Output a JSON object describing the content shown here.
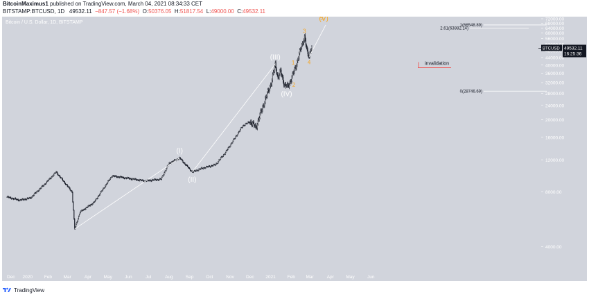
{
  "header": {
    "author": "BitcoinMaximus1",
    "published_text": " published on TradingView.com, March 04, 2021 08:34:33 CET",
    "symbol": "BITSTAMP:BTCUSD, 1D",
    "price": "49532.11",
    "change": "−847.57 (−1.68%)",
    "o_label": "O:",
    "o_val": "50376.05",
    "h_label": "H:",
    "h_val": "51817.54",
    "l_label": "L:",
    "l_val": "49000.00",
    "c_label": "C:",
    "c_val": "49532.11"
  },
  "chart_title": "Bitcoin / U.S. Dollar, 1D, BITSTAMP",
  "price_tag": {
    "symbol": "BTCUSD",
    "price": "49532.11",
    "countdown": "16:25:36"
  },
  "footer": {
    "brand": "TradingView"
  },
  "colors": {
    "background": "#d1d4dc",
    "candle": "#131722",
    "wave_orange": "#f5a623",
    "wave_white": "#ffffff",
    "invalidation": "#ef5350",
    "price_tag_bg": "#131722"
  },
  "chart_data": {
    "type": "candlestick",
    "title": "Bitcoin / U.S. Dollar, 1D, BITSTAMP",
    "y_axis": {
      "scale": "log",
      "ticks": [
        4000,
        8000,
        12000,
        16000,
        20000,
        24000,
        28000,
        32000,
        36000,
        40000,
        44000,
        48000,
        52000,
        56000,
        60000,
        64000,
        68000,
        72000
      ],
      "tick_labels": [
        "4000.00",
        "8000.00",
        "12000.00",
        "16000.00",
        "20000.00",
        "24000.00",
        "28000.00",
        "32000.00",
        "36000.00",
        "40000.00",
        "44000.00",
        "48000.00",
        "52000.00",
        "56000.00",
        "60000.00",
        "64000.00",
        "68000.00",
        "72000.00"
      ],
      "range": [
        3000,
        72000
      ]
    },
    "x_axis": {
      "tick_labels": [
        "Dec",
        "2020",
        "Feb",
        "Mar",
        "Apr",
        "May",
        "Jun",
        "Jul",
        "Aug",
        "Sep",
        "Oct",
        "Nov",
        "Dec",
        "2021",
        "Feb",
        "Mar",
        "Apr",
        "May",
        "Jun"
      ],
      "tick_months": [
        0,
        1,
        2,
        3,
        4,
        5,
        6,
        7,
        8,
        9,
        10,
        11,
        12,
        13,
        14,
        15,
        16,
        17,
        18
      ]
    },
    "price_path": [
      [
        "2019-12-01",
        7500
      ],
      [
        "2019-12-20",
        7200
      ],
      [
        "2020-01-05",
        7400
      ],
      [
        "2020-01-25",
        8700
      ],
      [
        "2020-02-13",
        10300
      ],
      [
        "2020-03-08",
        8000
      ],
      [
        "2020-03-12",
        5000
      ],
      [
        "2020-03-20",
        6200
      ],
      [
        "2020-04-10",
        7000
      ],
      [
        "2020-05-07",
        9800
      ],
      [
        "2020-06-01",
        9500
      ],
      [
        "2020-06-25",
        9200
      ],
      [
        "2020-07-20",
        9400
      ],
      [
        "2020-08-01",
        11500
      ],
      [
        "2020-08-17",
        12300
      ],
      [
        "2020-09-05",
        10300
      ],
      [
        "2020-09-20",
        10800
      ],
      [
        "2020-10-10",
        11300
      ],
      [
        "2020-10-25",
        13200
      ],
      [
        "2020-11-20",
        18500
      ],
      [
        "2020-12-01",
        19500
      ],
      [
        "2020-12-10",
        18200
      ],
      [
        "2020-12-20",
        23500
      ],
      [
        "2021-01-02",
        32000
      ],
      [
        "2021-01-08",
        40500
      ],
      [
        "2021-01-12",
        34000
      ],
      [
        "2021-01-16",
        37000
      ],
      [
        "2021-01-22",
        31000
      ],
      [
        "2021-01-27",
        30500
      ],
      [
        "2021-02-01",
        33500
      ],
      [
        "2021-02-08",
        39500
      ],
      [
        "2021-02-15",
        48500
      ],
      [
        "2021-02-21",
        57500
      ],
      [
        "2021-02-25",
        47000
      ],
      [
        "2021-02-28",
        44500
      ],
      [
        "2021-03-02",
        49000
      ],
      [
        "2021-03-04",
        49532
      ]
    ],
    "fib_levels": [
      {
        "label": "1(66548.89)",
        "value": 66548.89
      },
      {
        "label": "2.61(63882.14)",
        "value": 63882.14
      },
      {
        "label": "0(28746.69)",
        "value": 28746.69
      }
    ],
    "invalidation": {
      "label": "invalidation",
      "value": 38700
    },
    "waves_major": [
      {
        "label": "(I)",
        "date": "2020-08-17",
        "value": 12300,
        "pos": "above"
      },
      {
        "label": "(II)",
        "date": "2020-09-05",
        "value": 10300,
        "pos": "below"
      },
      {
        "label": "(III)",
        "date": "2021-01-08",
        "value": 40500,
        "pos": "above"
      },
      {
        "label": "(IV)",
        "date": "2021-01-25",
        "value": 30500,
        "pos": "below"
      },
      {
        "label": "(V)",
        "date": "2021-03-22",
        "value": 66000,
        "pos": "above"
      }
    ],
    "waves_minor": [
      {
        "label": "1",
        "date": "2021-02-04",
        "value": 38500,
        "pos": "above"
      },
      {
        "label": "2",
        "date": "2021-02-05",
        "value": 33500,
        "pos": "below"
      },
      {
        "label": "3",
        "date": "2021-02-21",
        "value": 57500,
        "pos": "above"
      },
      {
        "label": "4",
        "date": "2021-02-28",
        "value": 44500,
        "pos": "below"
      },
      {
        "label": "5",
        "date": "2021-03-19",
        "value": 68000,
        "pos": "above"
      }
    ],
    "wave_lines": [
      [
        [
          "2020-03-12",
          5000
        ],
        [
          "2020-08-17",
          12300
        ]
      ],
      [
        [
          "2020-09-05",
          10300
        ],
        [
          "2021-01-08",
          40500
        ]
      ],
      [
        [
          "2021-02-28",
          44500
        ],
        [
          "2021-03-25",
          66548.89
        ]
      ]
    ]
  }
}
